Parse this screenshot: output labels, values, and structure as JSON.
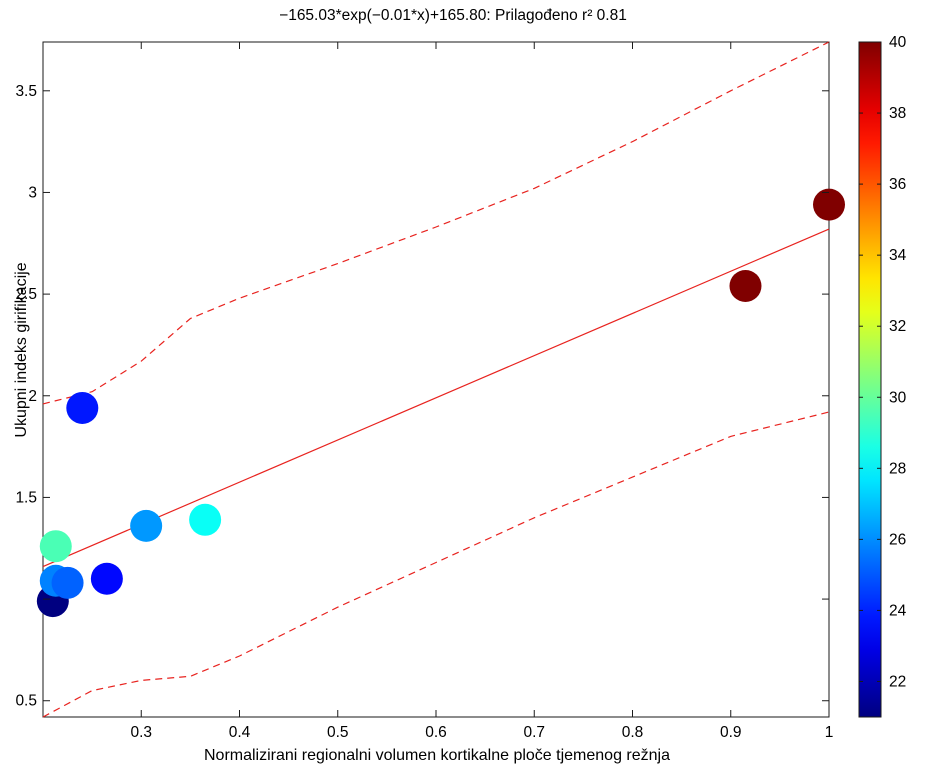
{
  "chart_data": {
    "type": "scatter",
    "title": "−165.03*exp(−0.01*x)+165.80: Prilagođeno r² 0.81",
    "xlabel": "Normalizirani regionalni volumen kortikalne ploče tjemenog režnja",
    "ylabel": "Ukupni indeks girifikacije",
    "xlim": [
      0.2,
      1.0
    ],
    "ylim": [
      0.42,
      3.74
    ],
    "x_ticks": [
      0.3,
      0.4,
      0.5,
      0.6,
      0.7,
      0.8,
      0.9,
      1.0
    ],
    "x_tick_labels": [
      "0.3",
      "0.4",
      "0.5",
      "0.6",
      "0.7",
      "0.8",
      "0.9",
      "1"
    ],
    "y_ticks": [
      0.5,
      1.0,
      1.5,
      2.0,
      2.5,
      3.0,
      3.5
    ],
    "y_tick_labels": [
      "0.5",
      "",
      "1.5",
      "2",
      "2.5",
      "3",
      "3.5"
    ],
    "grid": false,
    "points": [
      {
        "x": 0.21,
        "y": 0.99,
        "c": 21
      },
      {
        "x": 0.213,
        "y": 1.09,
        "c": 25.8
      },
      {
        "x": 0.225,
        "y": 1.08,
        "c": 25.2
      },
      {
        "x": 0.265,
        "y": 1.1,
        "c": 23.5
      },
      {
        "x": 0.213,
        "y": 1.26,
        "c": 29.5
      },
      {
        "x": 0.24,
        "y": 1.94,
        "c": 23.8
      },
      {
        "x": 0.305,
        "y": 1.36,
        "c": 26.2
      },
      {
        "x": 0.365,
        "y": 1.39,
        "c": 28.3
      },
      {
        "x": 0.915,
        "y": 2.54,
        "c": 40
      },
      {
        "x": 1.0,
        "y": 2.94,
        "c": 40
      }
    ],
    "fit_line": [
      [
        0.2,
        1.16
      ],
      [
        1.0,
        2.82
      ]
    ],
    "conf_upper": [
      [
        0.2,
        1.96
      ],
      [
        0.25,
        2.02
      ],
      [
        0.3,
        2.17
      ],
      [
        0.35,
        2.38
      ],
      [
        0.4,
        2.48
      ],
      [
        0.5,
        2.65
      ],
      [
        0.6,
        2.83
      ],
      [
        0.7,
        3.02
      ],
      [
        0.8,
        3.25
      ],
      [
        0.9,
        3.5
      ],
      [
        1.0,
        3.74
      ]
    ],
    "conf_lower": [
      [
        0.2,
        0.42
      ],
      [
        0.25,
        0.55
      ],
      [
        0.3,
        0.6
      ],
      [
        0.35,
        0.62
      ],
      [
        0.4,
        0.72
      ],
      [
        0.5,
        0.96
      ],
      [
        0.6,
        1.18
      ],
      [
        0.7,
        1.4
      ],
      [
        0.8,
        1.6
      ],
      [
        0.9,
        1.8
      ],
      [
        1.0,
        1.92
      ]
    ],
    "colorbar": {
      "range": [
        21,
        40
      ],
      "ticks": [
        22,
        24,
        26,
        28,
        30,
        32,
        34,
        36,
        38,
        40
      ],
      "tick_labels": [
        "22",
        "24",
        "26",
        "28",
        "30",
        "32",
        "34",
        "36",
        "38",
        "40"
      ],
      "colormap": "jet"
    },
    "colors": {
      "fit": "#e8231f",
      "axes": "#1a1a1a"
    }
  }
}
